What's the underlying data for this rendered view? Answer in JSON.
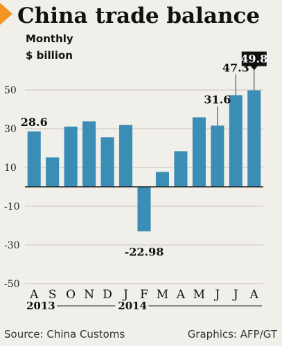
{
  "chart_data": {
    "type": "bar",
    "title": "China trade balance",
    "subtitle": "Monthly",
    "unit_label": "$ billion",
    "categories": [
      "A",
      "S",
      "O",
      "N",
      "D",
      "J",
      "F",
      "M",
      "A",
      "M",
      "J",
      "J",
      "A"
    ],
    "year_labels": [
      {
        "label": "2013",
        "start_index": 0,
        "end_index": 4
      },
      {
        "label": "2014",
        "start_index": 5,
        "end_index": 12
      }
    ],
    "values": [
      28.6,
      15.2,
      31.1,
      33.8,
      25.6,
      31.9,
      -22.98,
      7.7,
      18.4,
      35.9,
      31.6,
      47.3,
      49.8
    ],
    "yticks": [
      50,
      30,
      10,
      -10,
      -30,
      -50
    ],
    "ylim": [
      -50,
      55
    ],
    "grid": true,
    "bar_color": "#3a8db5",
    "annotations": [
      {
        "index": 0,
        "text": "28.6",
        "style": "plain"
      },
      {
        "index": 6,
        "text": "-22.98",
        "style": "plain"
      },
      {
        "index": 10,
        "text": "31.6",
        "style": "plain"
      },
      {
        "index": 11,
        "text": "47.3",
        "style": "plain"
      },
      {
        "index": 12,
        "text": "49.8",
        "style": "box"
      }
    ]
  },
  "footer": {
    "source": "Source: China Customs",
    "credit": "Graphics: AFP/GT"
  },
  "colors": {
    "accent": "#f29423",
    "bar": "#3a8db5",
    "grid": "#c9c5ba",
    "label_box": "#111111"
  }
}
